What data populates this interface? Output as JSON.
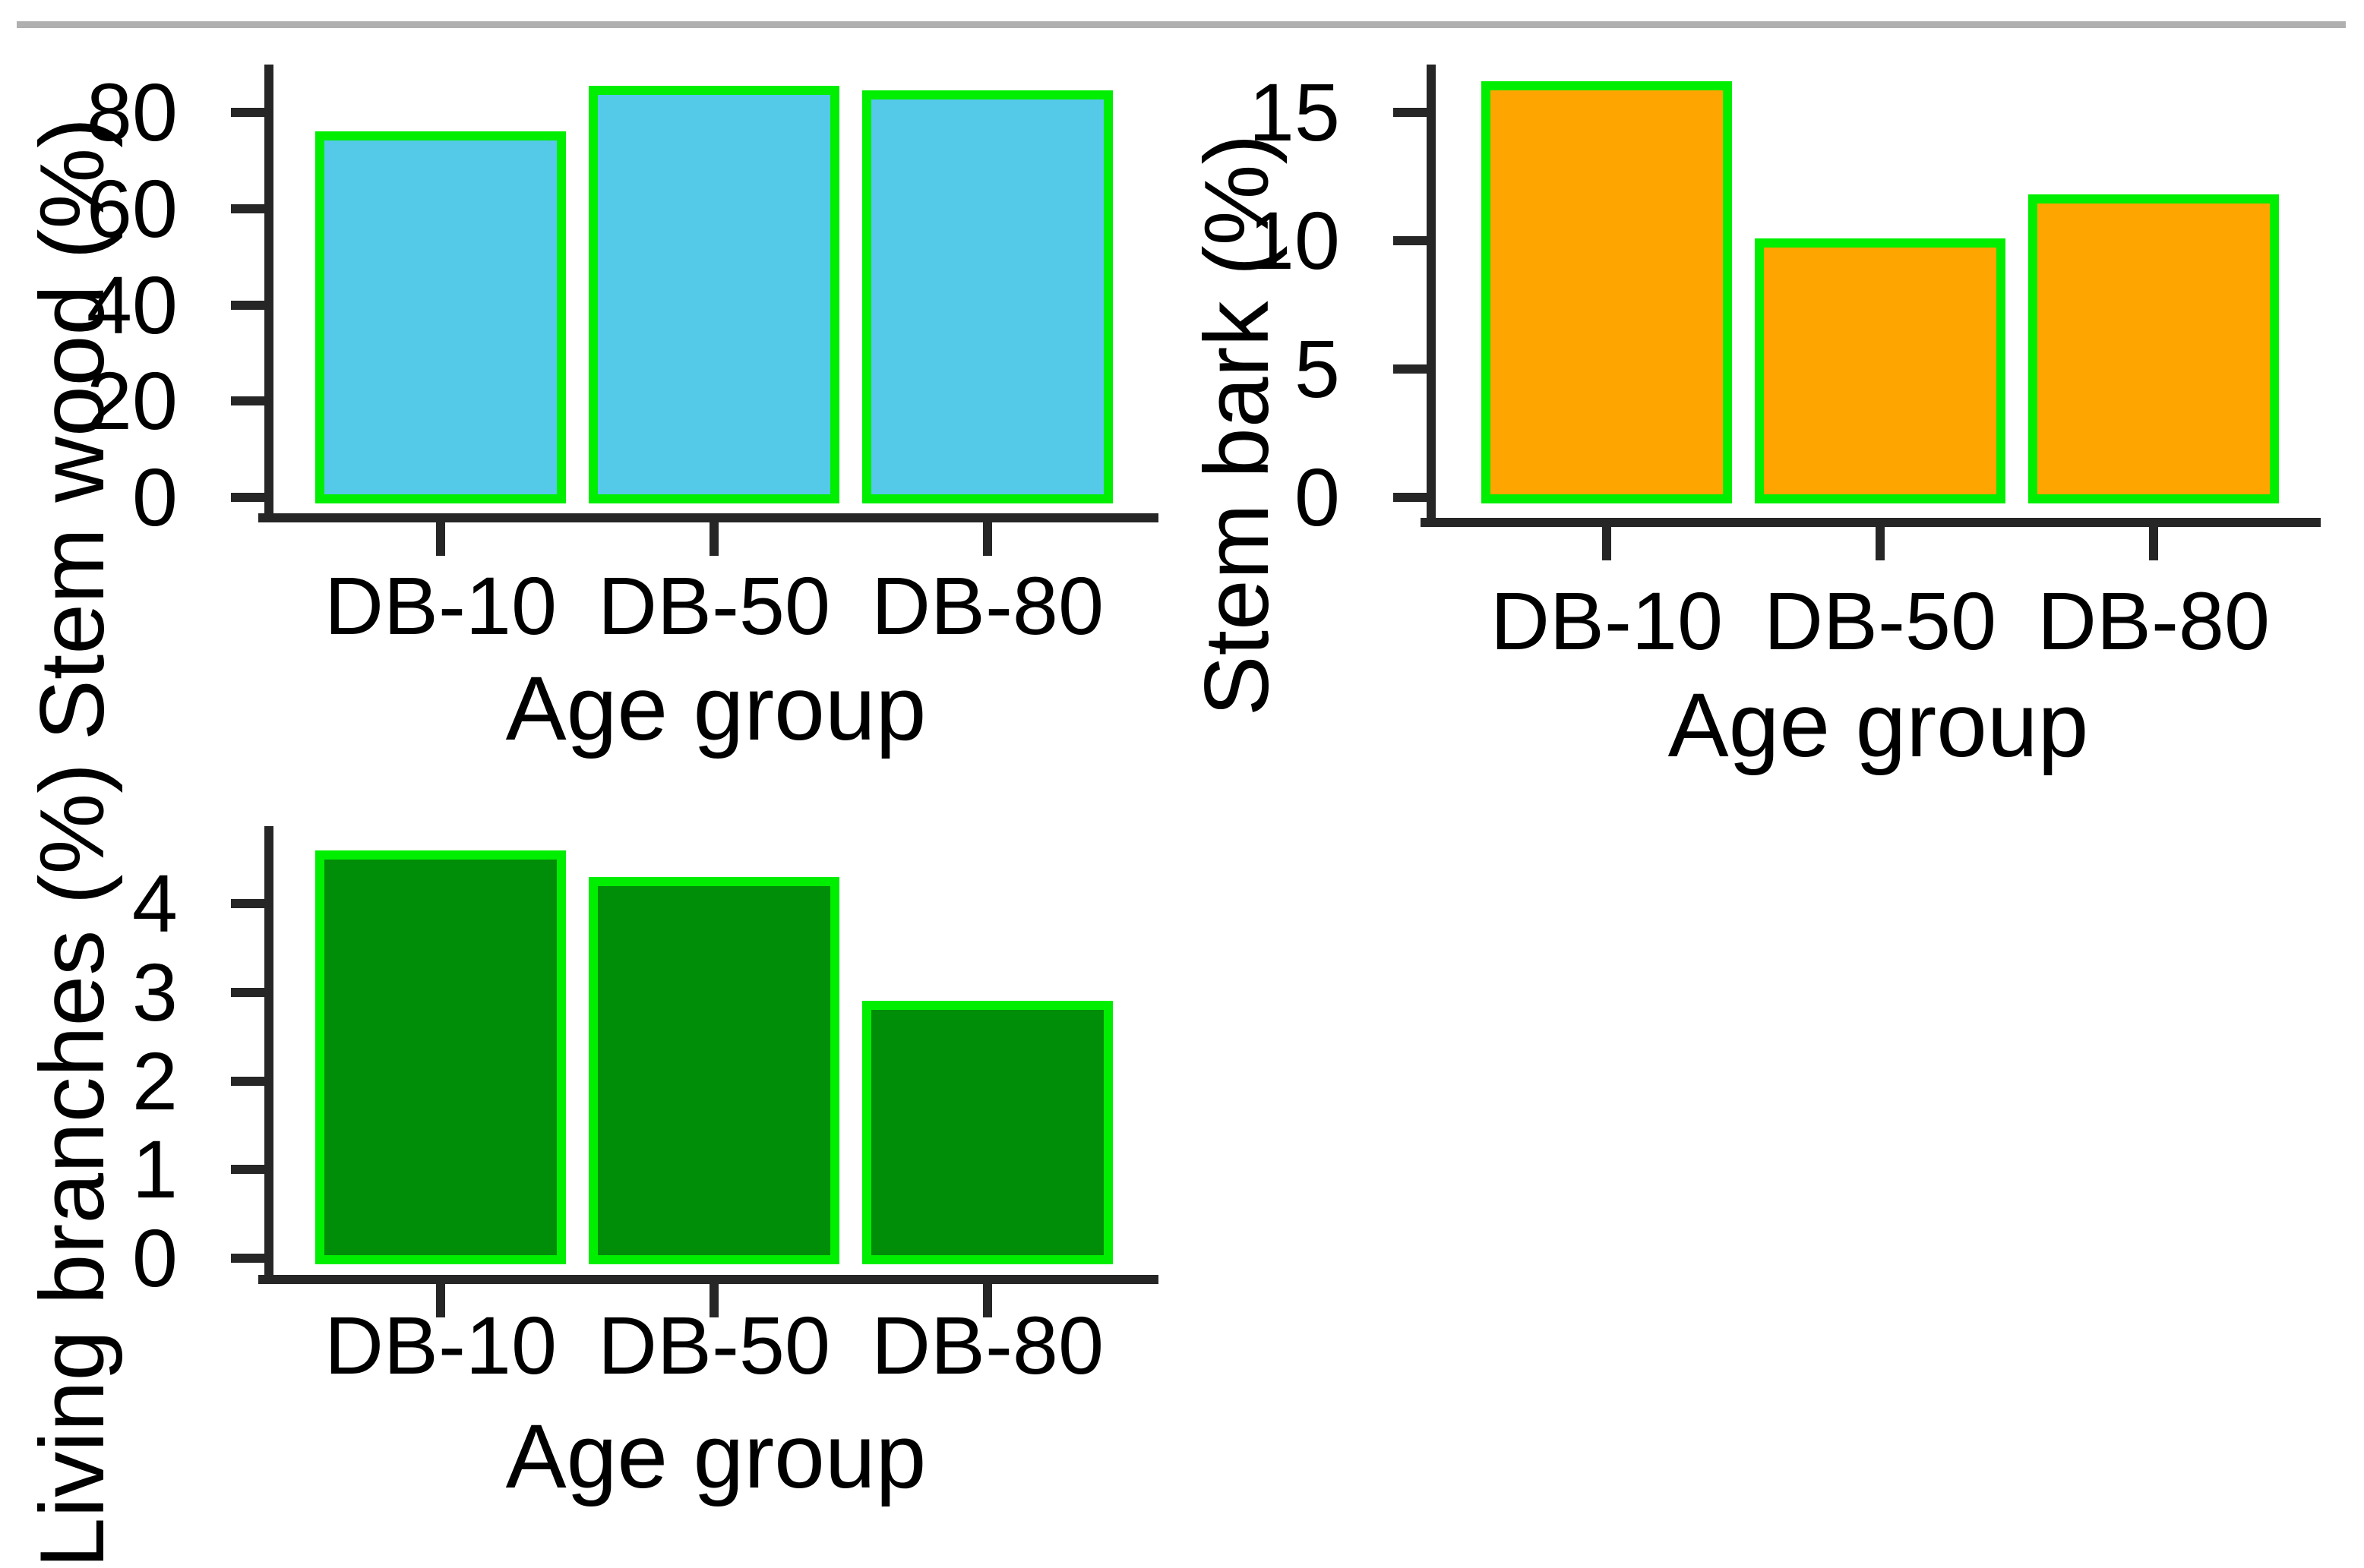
{
  "page": {
    "background_color": "#ffffff",
    "top_rule_color": "#b0b0b0"
  },
  "styles": {
    "axis_color": "#262626",
    "text_color": "#000000",
    "bar_border_color": "#00ee00"
  },
  "chart_data": [
    {
      "id": "stem-wood",
      "type": "bar",
      "title": "",
      "ylabel": "Stem wood (%)",
      "xlabel": "Age group",
      "categories": [
        "DB-10",
        "DB-50",
        "DB-80"
      ],
      "values": [
        76,
        85.5,
        84.5
      ],
      "yticks": [
        0,
        20,
        40,
        60,
        80
      ],
      "ylim": [
        0,
        90
      ],
      "grid": false,
      "legend": "none",
      "bar_color": "#54c9e8"
    },
    {
      "id": "stem-bark",
      "type": "bar",
      "title": "",
      "ylabel": "Stem bark (%)",
      "xlabel": "Age group",
      "categories": [
        "DB-10",
        "DB-50",
        "DB-80"
      ],
      "values": [
        16.2,
        10.1,
        11.8
      ],
      "yticks": [
        0,
        5,
        10,
        15
      ],
      "ylim": [
        0,
        16.9
      ],
      "grid": false,
      "legend": "none",
      "bar_color": "#ffa500"
    },
    {
      "id": "living-branches",
      "type": "bar",
      "title": "",
      "ylabel": "Living branches (%)",
      "xlabel": "Age group",
      "categories": [
        "DB-10",
        "DB-50",
        "DB-80"
      ],
      "values": [
        4.6,
        4.3,
        2.9
      ],
      "yticks": [
        0,
        1,
        2,
        3,
        4
      ],
      "ylim": [
        0,
        4.9
      ],
      "grid": false,
      "legend": "none",
      "bar_color": "#008d08"
    }
  ]
}
